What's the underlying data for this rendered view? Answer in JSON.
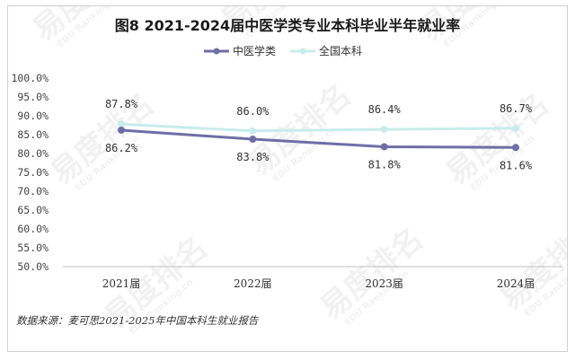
{
  "watermark": {
    "text": "易度排名",
    "subtext": "EDU Ranking.cn"
  },
  "chart_data": {
    "type": "line",
    "title": "图8  2021-2024届中医学类专业本科毕业半年就业率",
    "categories": [
      "2021届",
      "2022届",
      "2023届",
      "2024届"
    ],
    "ylim": [
      50.0,
      100.0
    ],
    "yticks": [
      "100.0%",
      "95.0%",
      "90.0%",
      "85.0%",
      "80.0%",
      "75.0%",
      "70.0%",
      "65.0%",
      "60.0%",
      "55.0%",
      "50.0%"
    ],
    "ytick_values": [
      100,
      95,
      90,
      85,
      80,
      75,
      70,
      65,
      60,
      55,
      50
    ],
    "grid": false,
    "legend_position": "top-center",
    "series": [
      {
        "name": "中医学类",
        "values": [
          86.2,
          83.8,
          81.8,
          81.6
        ],
        "labels": [
          "86.2%",
          "83.8%",
          "81.8%",
          "81.6%"
        ],
        "label_position": "below",
        "color": "#6e6ea6"
      },
      {
        "name": "全国本科",
        "values": [
          87.8,
          86.0,
          86.4,
          86.7
        ],
        "labels": [
          "87.8%",
          "86.0%",
          "86.4%",
          "86.7%"
        ],
        "label_position": "above",
        "color": "#c8ecec"
      }
    ]
  },
  "source": "数据来源：麦可思2021-2025年中国本科生就业报告"
}
